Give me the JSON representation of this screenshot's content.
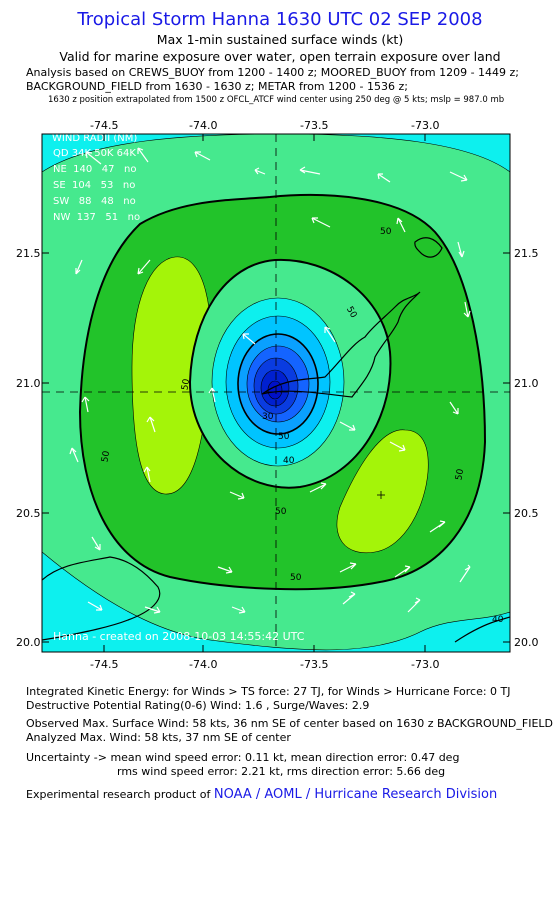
{
  "header": {
    "title": "Tropical Storm Hanna 1630 UTC 02 SEP 2008",
    "subtitle_1": "Max 1-min sustained surface winds (kt)",
    "subtitle_2": "Valid for marine exposure over water, open terrain exposure over land",
    "analysis_line_1": "Analysis based on  CREWS_BUOY from 1200 - 1400 z;  MOORED_BUOY from 1209 - 1449 z;",
    "analysis_line_2": "BACKGROUND_FIELD from 1630 - 1630 z;  METAR from 1200 - 1536 z;",
    "analysis_line_3": "1630 z position extrapolated from 1500 z OFCL_ATCF wind center using 250 deg @ 5 kts; mslp = 987.0 mb"
  },
  "map": {
    "lon_ticks": [
      "-74.5",
      "-74.0",
      "-73.5",
      "-73.0"
    ],
    "lat_ticks": [
      "21.5",
      "21.0",
      "20.5",
      "20.0"
    ],
    "lon_range": [
      -74.62,
      -72.7
    ],
    "lat_range": [
      20.0,
      21.97
    ],
    "center": {
      "lon": -73.62,
      "lat": 20.97
    },
    "contour_labels": [
      "50",
      "50",
      "50",
      "50",
      "50",
      "50",
      "50",
      "40",
      "40",
      "50",
      "30"
    ],
    "wind_radii": {
      "header": "WIND RADII (NM)",
      "columns": "QD 34K 50K 64K",
      "rows": [
        "NE  140   47   no",
        "SE  104   53   no",
        "SW   88   48   no",
        "NW  137   51   no"
      ]
    },
    "credit": "Hanna - created on 2008-10-03 14:55:42 UTC",
    "colors": {
      "ocean": "#0df0ee",
      "light_green": "#46e98e",
      "green": "#22c32a",
      "yellow_green": "#a4f409",
      "cyan_blue": "#00c4ff",
      "blue": "#1464ff",
      "dark_blue": "#0010c8"
    }
  },
  "footer": {
    "ike": "Integrated Kinetic Energy:  for Winds > TS force: 27 TJ,  for Winds > Hurricane Force: 0 TJ",
    "dpr": "Destructive Potential Rating(0-6)   Wind: 1.6 , Surge/Waves: 2.9",
    "observed": "Observed Max. Surface Wind: 58 kts, 36 nm SE of center based on 1630 z BACKGROUND_FIELD",
    "analyzed": "Analyzed Max. Wind: 58 kts, 37 nm SE of center",
    "uncert_1": "Uncertainty -> mean wind speed error: 0.11 kt,   mean direction error: 0.47 deg",
    "uncert_2": "rms wind speed error: 2.21 kt,   rms direction error: 5.66 deg",
    "product_text": "Experimental research product of ",
    "product_link": "NOAA / AOML / Hurricane Research Division"
  }
}
